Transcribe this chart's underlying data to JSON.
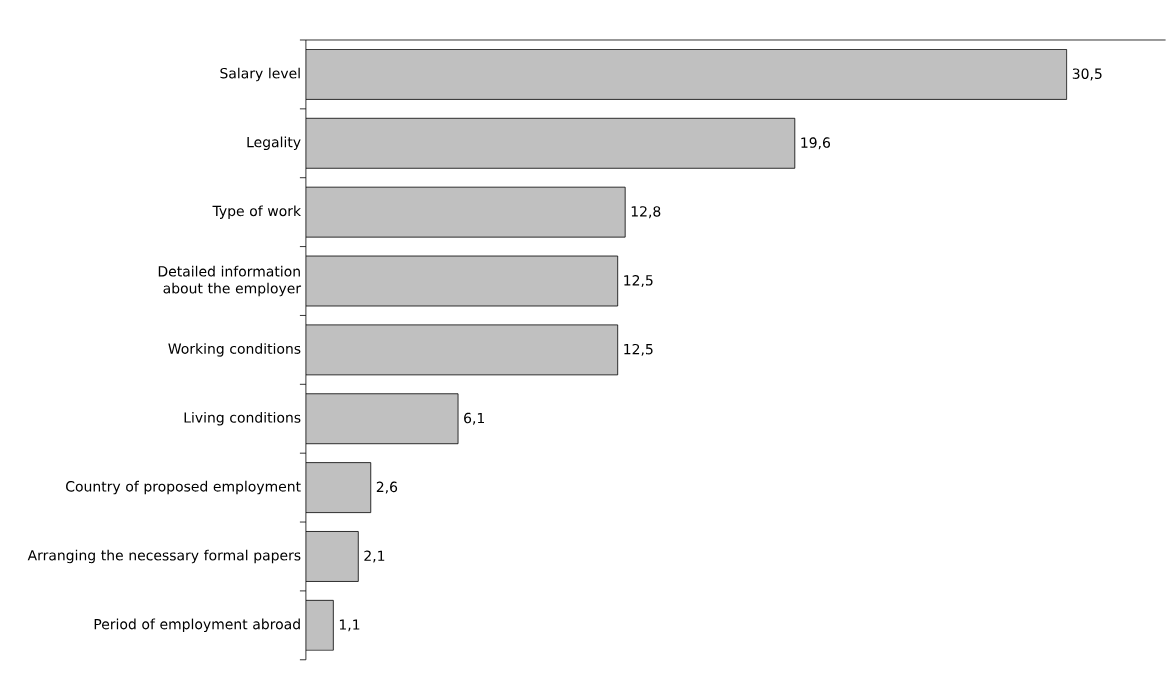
{
  "chart_data": {
    "type": "bar",
    "orientation": "horizontal",
    "categories": [
      "Salary level",
      "Legality",
      "Type of work",
      "Detailed information about the employer",
      "Working conditions",
      "Living conditions",
      "Country of proposed employment",
      "Arranging the necessary formal papers",
      "Period of employment abroad"
    ],
    "values": [
      30.5,
      19.6,
      12.8,
      12.5,
      12.5,
      6.1,
      2.6,
      2.1,
      1.1
    ],
    "value_labels": [
      "30,5",
      "19,6",
      "12,8",
      "12,5",
      "12,5",
      "6,1",
      "2,6",
      "2,1",
      "1,1"
    ],
    "color": "#c0c0c0"
  }
}
